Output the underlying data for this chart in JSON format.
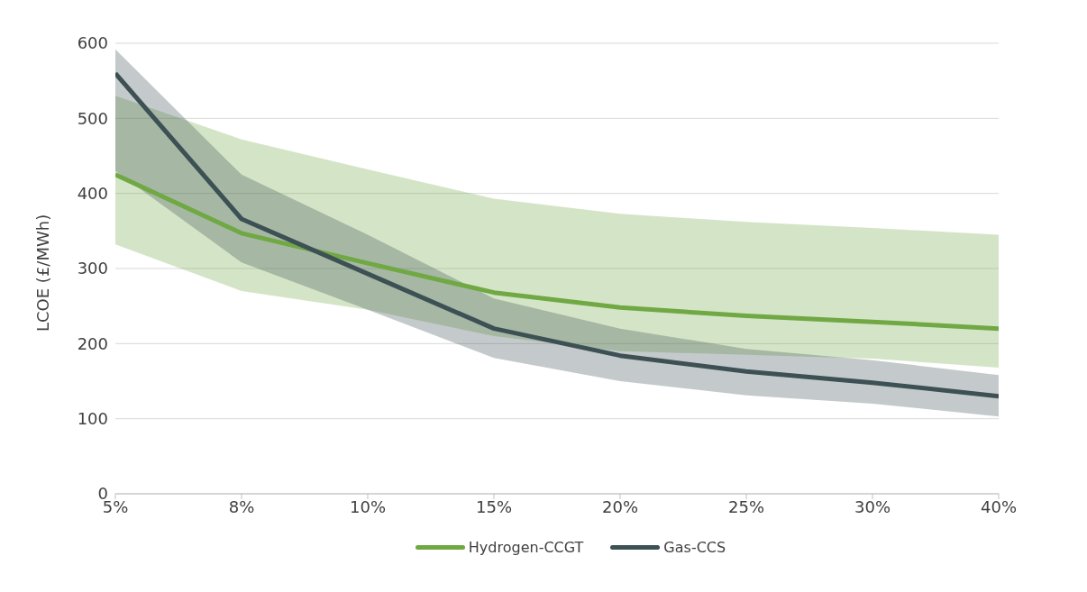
{
  "chart_data": {
    "type": "line",
    "ylabel": "LCOE (£/MWh)",
    "categories": [
      "5%",
      "8%",
      "10%",
      "15%",
      "20%",
      "25%",
      "30%",
      "40%"
    ],
    "series": [
      {
        "name": "Hydrogen-CCGT",
        "color": "#70a844",
        "values": [
          425,
          347,
          307,
          268,
          248,
          237,
          229,
          220
        ],
        "lower": [
          332,
          270,
          245,
          210,
          190,
          185,
          180,
          168
        ],
        "upper": [
          530,
          472,
          432,
          393,
          373,
          362,
          354,
          345
        ]
      },
      {
        "name": "Gas-CCS",
        "color": "#3d5054",
        "values": [
          560,
          366,
          293,
          220,
          184,
          163,
          148,
          130
        ],
        "lower": [
          430,
          308,
          245,
          181,
          150,
          131,
          120,
          103
        ],
        "upper": [
          592,
          425,
          345,
          260,
          220,
          193,
          178,
          158
        ]
      }
    ],
    "ylim": [
      0,
      600
    ],
    "yticks": [
      0,
      100,
      200,
      300,
      400,
      500,
      600
    ],
    "grid": "y",
    "legend": "bottom",
    "marker": "none",
    "line_style": "solid"
  }
}
